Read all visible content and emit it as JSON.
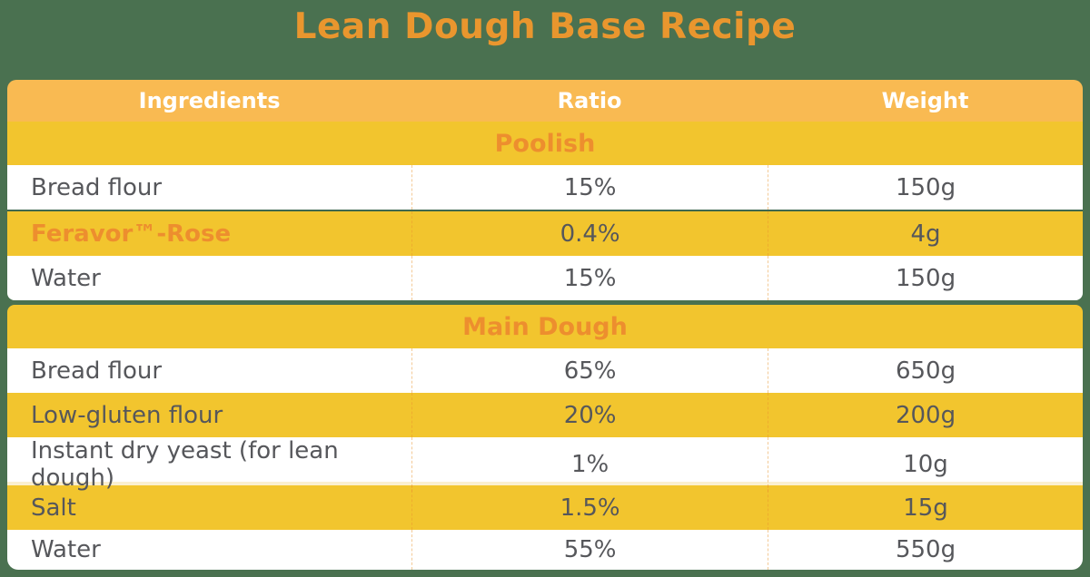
{
  "title": "Lean Dough Base Recipe",
  "colors": {
    "background_green": "#4A7150",
    "title_orange": "#E9962E",
    "header_amber": "#F9BA52",
    "stripe_yellow": "#F2C52E",
    "section_text_orange": "#ED8E2E",
    "body_text_gray": "#56575B",
    "divider_dark_green": "#3E6850",
    "divider_cream": "#FAEFD0"
  },
  "table": {
    "headers": [
      "Ingredients",
      "Ratio",
      "Weight"
    ],
    "sections": [
      {
        "name": "Poolish",
        "rows": [
          {
            "ingredient": "Bread flour",
            "ratio": "15%",
            "weight": "150g"
          },
          {
            "ingredient": "Feravor™-Rose",
            "ratio": "0.4%",
            "weight": "4g"
          },
          {
            "ingredient": "Water",
            "ratio": "15%",
            "weight": "150g"
          }
        ]
      },
      {
        "name": "Main Dough",
        "rows": [
          {
            "ingredient": "Bread flour",
            "ratio": "65%",
            "weight": "650g"
          },
          {
            "ingredient": "Low-gluten flour",
            "ratio": "20%",
            "weight": "200g"
          },
          {
            "ingredient": "Instant dry yeast (for lean dough)",
            "ratio": "1%",
            "weight": "10g"
          },
          {
            "ingredient": "Salt",
            "ratio": "1.5%",
            "weight": "15g"
          },
          {
            "ingredient": "Water",
            "ratio": "55%",
            "weight": "550g"
          }
        ]
      }
    ]
  }
}
